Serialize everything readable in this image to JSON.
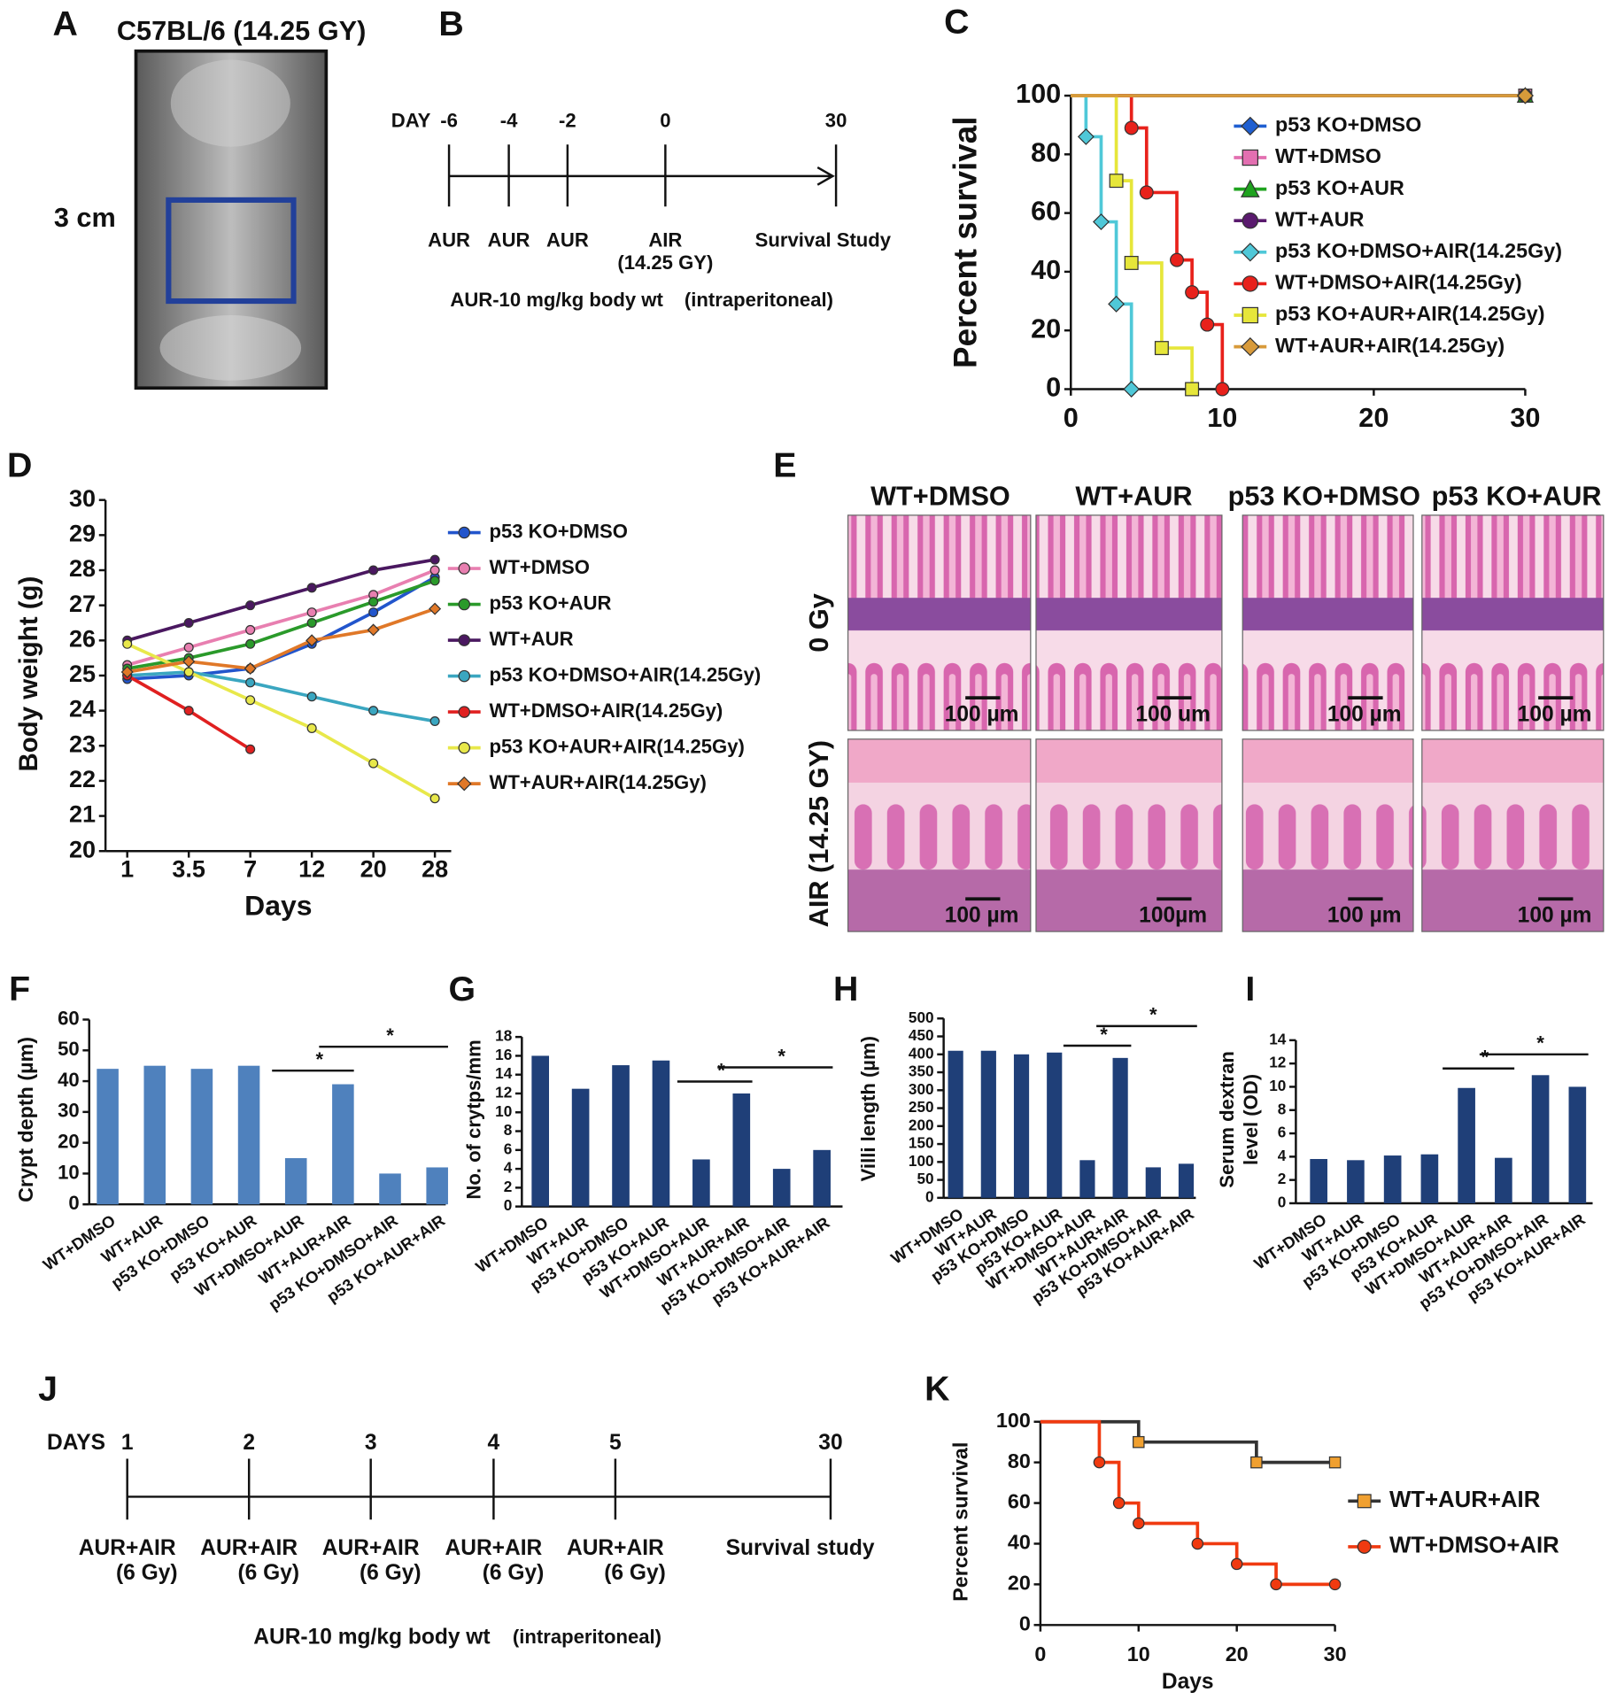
{
  "panel_a": {
    "label": "A",
    "title": "C57BL/6 (14.25 GY)",
    "scale": "3 cm"
  },
  "panel_b": {
    "label": "B",
    "day_label": "DAY",
    "days": [
      "-6",
      "-4",
      "-2",
      "0",
      "30"
    ],
    "events": [
      [
        "AUR"
      ],
      [
        "AUR"
      ],
      [
        "AUR"
      ],
      [
        "AIR",
        "(14.25 GY)"
      ],
      [
        "Survival Study"
      ]
    ],
    "dose": "AUR-10 mg/kg body wt",
    "route": "(intraperitoneal)"
  },
  "panel_e": {
    "label": "E",
    "columns": [
      "WT+DMSO",
      "WT+AUR",
      "p53 KO+DMSO",
      "p53 KO+AUR"
    ],
    "rows": [
      "0 Gy",
      "AIR (14.25 GY)"
    ],
    "scale_bars": [
      [
        "100 µm",
        "100 um",
        "100 µm",
        "100 µm"
      ],
      [
        "100 µm",
        "100µm",
        "100 µm",
        "100 µm"
      ]
    ]
  },
  "panel_j": {
    "label": "J",
    "day_label": "DAYS",
    "days": [
      1,
      2,
      3,
      4,
      5,
      30
    ],
    "events": [
      [
        "AUR+AIR",
        "(6 Gy)"
      ],
      [
        "AUR+AIR",
        "(6 Gy)"
      ],
      [
        "AUR+AIR",
        "(6 Gy)"
      ],
      [
        "AUR+AIR",
        "(6 Gy)"
      ],
      [
        "AUR+AIR",
        "(6 Gy)"
      ],
      [
        "Survival study"
      ]
    ],
    "dose": "AUR-10 mg/kg body wt",
    "route": "(intraperitoneal)"
  },
  "chart_data": [
    {
      "type": "line",
      "panel_label": "C",
      "drawstyle": "steps",
      "ylabel": "Percent survival",
      "xlim": [
        0,
        30
      ],
      "xticks": [
        0,
        10,
        20,
        30
      ],
      "ylim": [
        0,
        100
      ],
      "yticks": [
        0,
        20,
        40,
        60,
        80,
        100
      ],
      "legend": "upper right",
      "series": [
        {
          "name": "p53 KO+DMSO",
          "color": "#1f5fd1",
          "marker": "diamond",
          "x": [
            0,
            30
          ],
          "values": [
            100,
            100
          ]
        },
        {
          "name": "WT+DMSO",
          "color": "#e36fb1",
          "marker": "square",
          "x": [
            0,
            30
          ],
          "values": [
            100,
            100
          ]
        },
        {
          "name": "p53 KO+AUR",
          "color": "#1fa31f",
          "marker": "triangle",
          "x": [
            0,
            30
          ],
          "values": [
            100,
            100
          ]
        },
        {
          "name": "WT+AUR",
          "color": "#5a1a6e",
          "marker": "circle",
          "x": [
            0,
            30
          ],
          "values": [
            100,
            100
          ]
        },
        {
          "name": "p53 KO+DMSO+AIR(14.25Gy)",
          "color": "#4fc8d8",
          "marker": "diamond",
          "x": [
            0,
            1,
            2,
            3,
            4
          ],
          "values": [
            100,
            86,
            57,
            29,
            0
          ]
        },
        {
          "name": "WT+DMSO+AIR(14.25Gy)",
          "color": "#e8211b",
          "marker": "circle",
          "x": [
            0,
            4,
            5,
            7,
            8,
            9,
            10
          ],
          "values": [
            100,
            89,
            67,
            44,
            33,
            22,
            0
          ]
        },
        {
          "name": "p53 KO+AUR+AIR(14.25Gy)",
          "color": "#e6e63a",
          "marker": "square",
          "x": [
            0,
            3,
            4,
            6,
            8
          ],
          "values": [
            100,
            71,
            43,
            14,
            0
          ]
        },
        {
          "name": "WT+AUR+AIR(14.25Gy)",
          "color": "#d89a3a",
          "marker": "diamond",
          "x": [
            0,
            30
          ],
          "values": [
            100,
            100
          ]
        }
      ]
    },
    {
      "type": "line",
      "panel_label": "D",
      "xlabel": "Days",
      "ylabel": "Body weight (g)",
      "categories": [
        1,
        3.5,
        7,
        12,
        20,
        28
      ],
      "ylim": [
        20,
        30
      ],
      "yticks": [
        20,
        21,
        22,
        23,
        24,
        25,
        26,
        27,
        28,
        29,
        30
      ],
      "legend": "right",
      "series": [
        {
          "name": "p53 KO+DMSO",
          "color": "#2255cc",
          "marker": "circle",
          "values": [
            24.9,
            25.0,
            25.2,
            25.9,
            26.8,
            27.8
          ]
        },
        {
          "name": "WT+DMSO",
          "color": "#e87fb0",
          "marker": "circle",
          "values": [
            25.3,
            25.8,
            26.3,
            26.8,
            27.3,
            28.0
          ]
        },
        {
          "name": "p53 KO+AUR",
          "color": "#2a9a2a",
          "marker": "circle",
          "values": [
            25.2,
            25.5,
            25.9,
            26.5,
            27.1,
            27.7
          ]
        },
        {
          "name": "WT+AUR",
          "color": "#4a1860",
          "marker": "circle",
          "values": [
            26.0,
            26.5,
            27.0,
            27.5,
            28.0,
            28.3
          ]
        },
        {
          "name": "p53 KO+DMSO+AIR(14.25Gy)",
          "color": "#3aa6c0",
          "marker": "circle",
          "values": [
            25.0,
            25.1,
            24.8,
            24.4,
            24.0,
            23.7
          ]
        },
        {
          "name": "WT+DMSO+AIR(14.25Gy)",
          "color": "#e02020",
          "marker": "circle",
          "values": [
            25.0,
            24.0,
            22.9,
            null,
            null,
            null
          ]
        },
        {
          "name": "p53 KO+AUR+AIR(14.25Gy)",
          "color": "#e8e84a",
          "marker": "circle",
          "values": [
            25.9,
            25.1,
            24.3,
            23.5,
            22.5,
            21.5
          ]
        },
        {
          "name": "WT+AUR+AIR(14.25Gy)",
          "color": "#e07828",
          "marker": "diamond",
          "values": [
            25.1,
            25.4,
            25.2,
            26.0,
            26.3,
            26.9
          ]
        }
      ]
    },
    {
      "type": "bar",
      "panel_label": "F",
      "ylabel": "Crypt depth (µm)",
      "color": "#4f81bd",
      "categories": [
        "WT+DMSO",
        "WT+AUR",
        "p53 KO+DMSO",
        "p53 KO+AUR",
        "WT+DMSO+AUR",
        "WT+AUR+AIR",
        "p53 KO+DMSO+AIR",
        "p53 KO+AUR+AIR"
      ],
      "values": [
        44,
        45,
        44,
        45,
        15,
        39,
        10,
        12
      ],
      "ylim": [
        0,
        60
      ],
      "yticks": [
        0,
        10,
        20,
        30,
        40,
        50,
        60
      ],
      "annotations": [
        "*",
        "*"
      ]
    },
    {
      "type": "bar",
      "panel_label": "G",
      "ylabel": "No. of crytps/mm",
      "color": "#1f3f78",
      "categories": [
        "WT+DMSO",
        "WT+AUR",
        "p53 KO+DMSO",
        "p53 KO+AUR",
        "WT+DMSO+AUR",
        "WT+AUR+AIR",
        "p53 KO+DMSO+AIR",
        "p53 KO+AUR+AIR"
      ],
      "values": [
        16,
        12.5,
        15,
        15.5,
        5,
        12,
        4,
        6
      ],
      "ylim": [
        0,
        18
      ],
      "yticks": [
        0,
        2,
        4,
        6,
        8,
        10,
        12,
        14,
        16,
        18
      ],
      "annotations": [
        "*",
        "*"
      ]
    },
    {
      "type": "bar",
      "panel_label": "H",
      "ylabel": "Villi length (µm)",
      "color": "#1f3f78",
      "categories": [
        "WT+DMSO",
        "WT+AUR",
        "p53 KO+DMSO",
        "p53 KO+AUR",
        "WT+DMSO+AUR",
        "WT+AUR+AIR",
        "p53 KO+DMSO+AIR",
        "p53 KO+AUR+AIR"
      ],
      "values": [
        410,
        410,
        400,
        405,
        105,
        390,
        85,
        95
      ],
      "ylim": [
        0,
        500
      ],
      "yticks": [
        0,
        50,
        100,
        150,
        200,
        250,
        300,
        350,
        400,
        450,
        500
      ],
      "annotations": [
        "*",
        "*"
      ]
    },
    {
      "type": "bar",
      "panel_label": "I",
      "ylabel": [
        "Serum dextran",
        "level (OD)"
      ],
      "color": "#1f3f78",
      "categories": [
        "WT+DMSO",
        "WT+AUR",
        "p53 KO+DMSO",
        "p53 KO+AUR",
        "WT+DMSO+AUR",
        "WT+AUR+AIR",
        "p53 KO+DMSO+AIR",
        "p53 KO+AUR+AIR"
      ],
      "values": [
        3.8,
        3.7,
        4.1,
        4.2,
        9.9,
        3.9,
        11,
        10
      ],
      "ylim": [
        0,
        14
      ],
      "yticks": [
        0,
        2,
        4,
        6,
        8,
        10,
        12,
        14
      ],
      "annotations": [
        "*",
        "*"
      ]
    },
    {
      "type": "line",
      "panel_label": "K",
      "drawstyle": "steps",
      "xlabel": "Days",
      "ylabel": "Percent survival",
      "xlim": [
        0,
        30
      ],
      "xticks": [
        0,
        10,
        20,
        30
      ],
      "ylim": [
        0,
        100
      ],
      "yticks": [
        0,
        20,
        40,
        60,
        80,
        100
      ],
      "legend": "right",
      "series": [
        {
          "name": "WT+AUR+AIR",
          "color": "#f0a030",
          "line_color": "#333333",
          "marker": "square",
          "x": [
            0,
            10,
            22,
            30
          ],
          "values": [
            100,
            90,
            80,
            80
          ]
        },
        {
          "name": "WT+DMSO+AIR",
          "color": "#f03a10",
          "marker": "circle",
          "x": [
            0,
            6,
            8,
            10,
            16,
            20,
            24,
            30
          ],
          "values": [
            100,
            80,
            60,
            50,
            40,
            30,
            20,
            20
          ]
        }
      ]
    }
  ]
}
